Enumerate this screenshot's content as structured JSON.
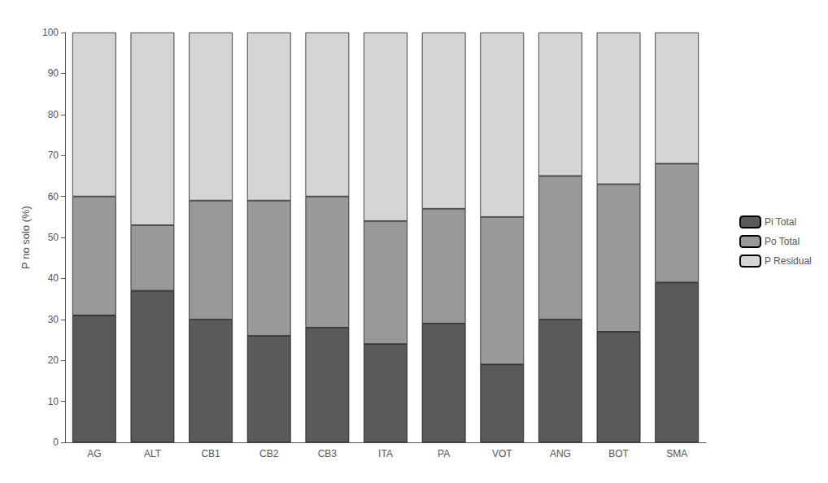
{
  "chart_data": {
    "type": "bar",
    "stacked": true,
    "categories": [
      "AG",
      "ALT",
      "CB1",
      "CB2",
      "CB3",
      "ITA",
      "PA",
      "VOT",
      "ANG",
      "BOT",
      "SMA"
    ],
    "series": [
      {
        "name": "Pi Total",
        "color": "#5a5a5a",
        "values": [
          31,
          37,
          30,
          26,
          28,
          24,
          29,
          19,
          30,
          27,
          39
        ]
      },
      {
        "name": "Po Total",
        "color": "#999999",
        "values": [
          29,
          16,
          29,
          33,
          32,
          30,
          28,
          36,
          35,
          36,
          29
        ]
      },
      {
        "name": "P Residual",
        "color": "#d5d5d5",
        "values": [
          40,
          47,
          41,
          41,
          40,
          46,
          43,
          45,
          35,
          37,
          32
        ]
      }
    ],
    "ylabel": "P no solo (%)",
    "ylim": [
      0,
      100
    ],
    "yticks": [
      0,
      10,
      20,
      30,
      40,
      50,
      60,
      70,
      80,
      90,
      100
    ],
    "grid": false,
    "legend": "right"
  }
}
